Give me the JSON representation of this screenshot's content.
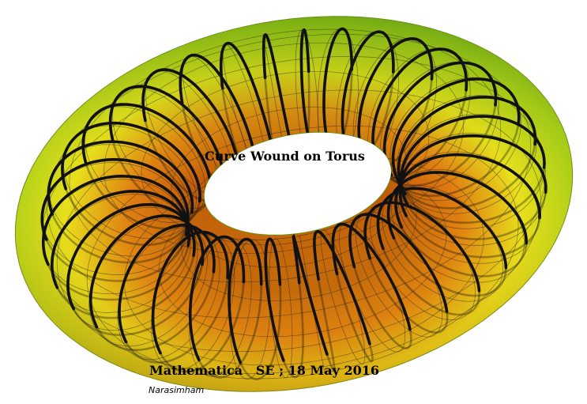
{
  "figure": {
    "title": "Curve Wound on Torus",
    "credit": "Mathematica   SE ; 18 May 2016",
    "author": "Narasimham"
  },
  "torus": {
    "tube_windings": 36,
    "mesh_lines_around": 12,
    "mesh_lines_along": 36,
    "colors": {
      "outer_green": "#7fbf1a",
      "yellow": "#e8e01c",
      "orange": "#e07a10",
      "dark_orange": "#c05a08",
      "curve": "#111111",
      "mesh": "#222222"
    }
  }
}
